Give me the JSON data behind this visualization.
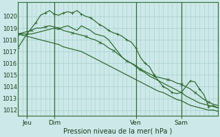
{
  "background_color": "#cce8e8",
  "grid_color": "#a8cece",
  "line_color": "#2d6b2d",
  "xlabel": "Pression niveau de la mer( hPa )",
  "ylim": [
    1011.5,
    1021.2
  ],
  "yticks": [
    1012,
    1013,
    1014,
    1015,
    1016,
    1017,
    1018,
    1019,
    1020
  ],
  "xlim": [
    0,
    44
  ],
  "xtick_positions": [
    2,
    8,
    26,
    36
  ],
  "xtick_labels": [
    "Jeu",
    "Dim",
    "Ven",
    "Sam"
  ],
  "series": [
    [
      1017.3,
      1017.9,
      1018.5,
      1019.0,
      1019.5,
      1020.1,
      1020.3,
      1020.5,
      1020.2,
      1020.1,
      1020.3,
      1020.4,
      1020.3,
      1020.5,
      1020.2,
      1020.0,
      1019.9,
      1019.6,
      1019.3,
      1019.1,
      1018.8,
      1018.6,
      1018.5,
      1018.3,
      1018.0,
      1017.8,
      1017.3,
      1016.5,
      1016.0,
      1015.7,
      1015.0,
      1014.5,
      1014.0,
      1013.8,
      1013.5,
      1013.4,
      1013.5,
      1014.0,
      1014.5,
      1014.4,
      1013.8,
      1013.3,
      1012.3,
      1012.4,
      1012.2
    ],
    [
      1018.5,
      1018.6,
      1018.7,
      1018.8,
      1019.0,
      1019.0,
      1019.1,
      1019.2,
      1019.1,
      1019.0,
      1018.8,
      1018.7,
      1018.6,
      1018.5,
      1018.4,
      1018.3,
      1018.1,
      1018.0,
      1017.8,
      1017.6,
      1017.3,
      1017.1,
      1016.8,
      1016.5,
      1016.2,
      1016.0,
      1015.8,
      1015.5,
      1015.3,
      1015.1,
      1014.9,
      1014.8,
      1014.7,
      1014.6,
      1014.5,
      1014.3,
      1014.2,
      1014.0,
      1013.8,
      1013.5,
      1013.2,
      1012.9,
      1012.7,
      1012.5,
      1012.4
    ],
    [
      1018.5,
      1018.5,
      1018.5,
      1018.5,
      1018.6,
      1018.7,
      1018.8,
      1018.9,
      1019.0,
      1018.9,
      1019.1,
      1019.2,
      1019.0,
      1018.8,
      1019.2,
      1019.0,
      1018.8,
      1018.5,
      1018.4,
      1018.3,
      1018.0,
      1017.5,
      1017.0,
      1016.5,
      1016.2,
      1016.0,
      1015.7,
      1015.4,
      1015.2,
      1014.9,
      1014.7,
      1014.5,
      1014.3,
      1014.1,
      1013.9,
      1013.7,
      1013.5,
      1013.2,
      1013.0,
      1012.8,
      1012.6,
      1012.5,
      1012.4,
      1012.3,
      1012.2
    ],
    [
      1018.5,
      1018.4,
      1018.3,
      1018.2,
      1018.1,
      1018.0,
      1017.9,
      1017.8,
      1017.7,
      1017.6,
      1017.4,
      1017.3,
      1017.2,
      1017.1,
      1017.0,
      1016.8,
      1016.6,
      1016.4,
      1016.2,
      1016.0,
      1015.8,
      1015.6,
      1015.4,
      1015.2,
      1015.0,
      1014.8,
      1014.6,
      1014.4,
      1014.2,
      1014.0,
      1013.8,
      1013.6,
      1013.5,
      1013.3,
      1013.1,
      1012.9,
      1012.8,
      1012.6,
      1012.4,
      1012.3,
      1012.2,
      1012.1,
      1012.0,
      1012.0,
      1011.9
    ]
  ]
}
